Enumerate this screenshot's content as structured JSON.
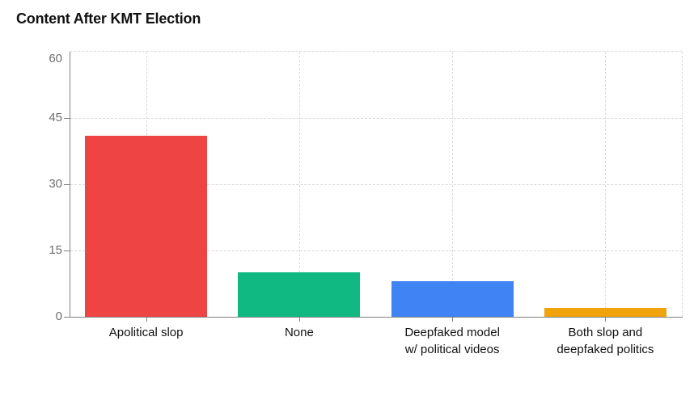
{
  "chart_data": {
    "type": "bar",
    "title": "Content After KMT Election",
    "categories": [
      "Apolitical slop",
      "None",
      "Deepfaked model\nw/ political videos",
      "Both slop and\ndeepfaked politics"
    ],
    "values": [
      41,
      10,
      8,
      2
    ],
    "bar_colors": [
      "#ee4444",
      "#10b981",
      "#3f83f4",
      "#f0a30c"
    ],
    "xlabel": "",
    "ylabel": "",
    "ylim": [
      0,
      60
    ],
    "yticks": [
      0,
      15,
      30,
      45,
      60
    ],
    "grid": "dashed",
    "legend_position": "none",
    "background_color": "#ffffff",
    "axis_color": "#808080",
    "gridline_color": "#d9d9d9",
    "tick_label_color": "#6e6e6e",
    "category_label_color": "#111111",
    "title_color": "#111111"
  }
}
